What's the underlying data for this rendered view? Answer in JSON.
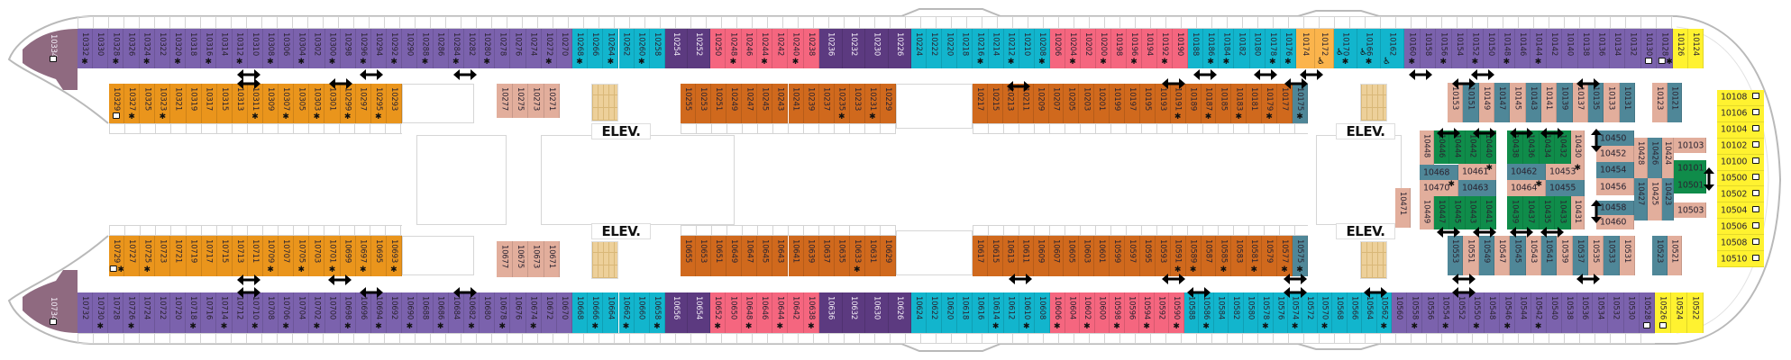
{
  "deck": {
    "elevator_label": "ELEV.",
    "bow_cabins": [
      {
        "n": "10334",
        "color": "#8f6a80",
        "icon": "sofa-bed"
      },
      {
        "n": "10734",
        "color": "#8f6a80",
        "icon": "sofa-bed"
      }
    ],
    "blocks": [
      {
        "color": "#7b62ad",
        "cabins": [
          "10332",
          "10330",
          "10328",
          "10326",
          "10324",
          "10322",
          "10320",
          "10318",
          "10316",
          "10314",
          "10312",
          "10310",
          "10308",
          "10306",
          "10304",
          "10302",
          "10300",
          "10298",
          "10296",
          "10294",
          "10292",
          "10290",
          "10288",
          "10286",
          "10284",
          "10282",
          "10280",
          "10278",
          "10276",
          "10274",
          "10272",
          "10270"
        ],
        "starred": [
          "10332",
          "10328",
          "10324",
          "10320",
          "10316",
          "10312",
          "10308",
          "10304",
          "10300",
          "10296",
          "10292",
          "10288",
          "10284",
          "10280",
          "10272"
        ]
      },
      {
        "color": "#12b5cd",
        "cabins": [
          "10268",
          "10266",
          "10264",
          "10262",
          "10260",
          "10258"
        ],
        "starred": [
          "10268",
          "10264",
          "10260"
        ]
      },
      {
        "color": "#5c3a80",
        "light": true,
        "cabins": [
          "10254",
          "10252"
        ],
        "starred": []
      },
      {
        "color": "#f5667f",
        "cabins": [
          "10250",
          "10248",
          "10246",
          "10244",
          "10242",
          "10240",
          "10238"
        ],
        "starred": [
          "10248",
          "10244",
          "10240"
        ]
      },
      {
        "color": "#5c3a80",
        "light": true,
        "cabins": [
          "10236",
          "10232",
          "10230",
          "10226"
        ],
        "starred": []
      },
      {
        "color": "#12b5cd",
        "cabins": [
          "10224",
          "10222",
          "10220",
          "10218",
          "10216",
          "10214",
          "10212",
          "10210",
          "10208"
        ],
        "starred": [
          "10216",
          "10212",
          "10208"
        ]
      },
      {
        "color": "#f5667f",
        "cabins": [
          "10206",
          "10204",
          "10202",
          "10200",
          "10198",
          "10196",
          "10194",
          "10192",
          "10190"
        ],
        "starred": [
          "10204",
          "10200",
          "10196",
          "10192"
        ]
      },
      {
        "color": "#12b5cd",
        "cabins": [
          "10188",
          "10186",
          "10184",
          "10182",
          "10180",
          "10178",
          "10176"
        ],
        "starred": [
          "10186",
          "10184",
          "10178",
          "10176"
        ]
      },
      {
        "color": "#fbb44c",
        "cabins": [
          "10174",
          "10172"
        ],
        "starred": [],
        "icons": {
          "10172": "wheelchair"
        }
      },
      {
        "color": "#12b5cd",
        "cabins": [
          "10170",
          "10166",
          "10162"
        ],
        "starred": [
          "10170",
          "10166"
        ],
        "icons": {
          "10170": "wheelchair",
          "10166": "wheelchair",
          "10162": "wheelchair"
        }
      },
      {
        "color": "#7b62ad",
        "cabins": [
          "10160",
          "10158",
          "10156",
          "10154",
          "10152",
          "10150",
          "10148",
          "10146",
          "10144",
          "10142",
          "10140",
          "10138",
          "10136",
          "10134",
          "10132",
          "10130",
          "10128"
        ],
        "starred": [
          "10160",
          "10156",
          "10152",
          "10148",
          "10144",
          "10128"
        ],
        "icons": {
          "10130": "sofa-bed",
          "10128": "sofa-bed"
        }
      },
      {
        "color": "#fff230",
        "cabins": [
          "10126",
          "10124"
        ],
        "starred": []
      },
      {
        "color": "#ea951c",
        "cabins": [
          "10329",
          "10327",
          "10325",
          "10323",
          "10321",
          "10319",
          "10317",
          "10315",
          "10313",
          "10311",
          "10309",
          "10307",
          "10305",
          "10303",
          "10301",
          "10299",
          "10297",
          "10295",
          "10293"
        ],
        "starred": [
          "10327",
          "10323",
          "10311",
          "10307",
          "10303",
          "10299",
          "10295"
        ],
        "icons": {
          "10329": "sofa-bed"
        }
      },
      {
        "color": "#e2ae9c",
        "cabins": [
          "10277",
          "10275",
          "10273",
          "10271"
        ],
        "starred": []
      },
      {
        "color": "#d0691d",
        "cabins": [
          "10255",
          "10253",
          "10251",
          "10249",
          "10247",
          "10245",
          "10243",
          "10241",
          "10239",
          "10237",
          "10235",
          "10233",
          "10231",
          "10229"
        ],
        "starred": [
          "10235",
          "10231"
        ]
      },
      {
        "color": "#d0691d",
        "cabins": [
          "10217",
          "10215",
          "10213",
          "10211",
          "10209",
          "10207",
          "10205",
          "10203",
          "10201",
          "10199",
          "10197",
          "10195",
          "10193",
          "10191",
          "10189",
          "10187",
          "10185",
          "10183",
          "10181",
          "10179",
          "10177"
        ],
        "starred": [
          "10191",
          "10187",
          "10183",
          "10179"
        ]
      },
      {
        "color": "#4f8798",
        "cabins": [
          "10175"
        ],
        "starred": [
          "10175"
        ]
      },
      {
        "pattern": [
          "#e2ae9c",
          "#4f8798"
        ],
        "cabins": [
          "10153",
          "10151",
          "10149",
          "10147",
          "10145",
          "10143",
          "10141",
          "10139",
          "10137",
          "10135",
          "10133",
          "10131"
        ],
        "starred": []
      },
      {
        "pattern": [
          "#e2ae9c",
          "#4f8798"
        ],
        "cabins": [
          "10123",
          "10121"
        ],
        "starred": []
      },
      {
        "color": "#ea951c",
        "cabins": [
          "10729",
          "10727",
          "10725",
          "10723",
          "10721",
          "10719",
          "10717",
          "10715",
          "10713",
          "10711",
          "10709",
          "10707",
          "10705",
          "10703",
          "10701",
          "10699",
          "10697",
          "10695",
          "10693"
        ],
        "starred": [
          "10729",
          "10725",
          "10709",
          "10705",
          "10701",
          "10697",
          "10693"
        ],
        "icons": {
          "10729": "sofa-bed"
        }
      },
      {
        "color": "#e2ae9c",
        "cabins": [
          "10677",
          "10675",
          "10673",
          "10671"
        ],
        "starred": []
      },
      {
        "color": "#d0691d",
        "cabins": [
          "10655",
          "10653",
          "10651",
          "10649",
          "10647",
          "10645",
          "10643",
          "10641",
          "10639",
          "10637",
          "10635",
          "10633",
          "10631",
          "10629"
        ],
        "starred": [
          "10633"
        ]
      },
      {
        "color": "#d0691d",
        "cabins": [
          "10617",
          "10615",
          "10613",
          "10611",
          "10609",
          "10607",
          "10605",
          "10603",
          "10601",
          "10599",
          "10597",
          "10595",
          "10593",
          "10591",
          "10589",
          "10587",
          "10585",
          "10583",
          "10581",
          "10579",
          "10577"
        ],
        "starred": [
          "10591",
          "10589",
          "10585",
          "10581",
          "10577"
        ]
      },
      {
        "color": "#4f8798",
        "cabins": [
          "10575"
        ],
        "starred": [
          "10575"
        ]
      },
      {
        "pattern": [
          "#4f8798",
          "#e2ae9c"
        ],
        "cabins": [
          "10553",
          "10551",
          "10549",
          "10547",
          "10545",
          "10543",
          "10541",
          "10539",
          "10537",
          "10535",
          "10533",
          "10531"
        ],
        "starred": []
      },
      {
        "pattern": [
          "#4f8798",
          "#e2ae9c"
        ],
        "cabins": [
          "10523",
          "10521"
        ],
        "starred": []
      },
      {
        "color": "#7b62ad",
        "cabins": [
          "10732",
          "10730",
          "10728",
          "10726",
          "10724",
          "10722",
          "10720",
          "10718",
          "10716",
          "10714",
          "10712",
          "10710",
          "10708",
          "10706",
          "10704",
          "10702",
          "10700",
          "10698",
          "10696",
          "10694",
          "10692",
          "10690",
          "10688",
          "10686",
          "10684",
          "10682",
          "10680",
          "10678",
          "10676",
          "10674",
          "10672",
          "10670"
        ],
        "starred": [
          "10730",
          "10726",
          "10718",
          "10714",
          "10710",
          "10706",
          "10702",
          "10698",
          "10694",
          "10690",
          "10686",
          "10682",
          "10678",
          "10674"
        ]
      },
      {
        "color": "#12b5cd",
        "cabins": [
          "10668",
          "10666",
          "10664",
          "10662",
          "10660",
          "10658"
        ],
        "starred": [
          "10666",
          "10662",
          "10658"
        ]
      },
      {
        "color": "#5c3a80",
        "light": true,
        "cabins": [
          "10656",
          "10654"
        ],
        "starred": []
      },
      {
        "color": "#f5667f",
        "cabins": [
          "10652",
          "10650",
          "10648",
          "10646",
          "10644",
          "10642",
          "10638"
        ],
        "starred": [
          "10652",
          "10648",
          "10644",
          "10638"
        ]
      },
      {
        "color": "#5c3a80",
        "light": true,
        "cabins": [
          "10636",
          "10632",
          "10630",
          "10626"
        ],
        "starred": []
      },
      {
        "color": "#12b5cd",
        "cabins": [
          "10624",
          "10622",
          "10620",
          "10618",
          "10616",
          "10614",
          "10612",
          "10610",
          "10608"
        ],
        "starred": [
          "10614",
          "10610"
        ]
      },
      {
        "color": "#f5667f",
        "cabins": [
          "10606",
          "10604",
          "10602",
          "10600",
          "10598",
          "10596",
          "10594",
          "10592",
          "10590"
        ],
        "starred": [
          "10606",
          "10602",
          "10598",
          "10594",
          "10590"
        ]
      },
      {
        "color": "#12b5cd",
        "cabins": [
          "10588",
          "10586",
          "10584",
          "10582",
          "10580",
          "10578",
          "10576",
          "10574",
          "10572",
          "10570",
          "10568",
          "10566",
          "10564",
          "10562"
        ],
        "starred": [
          "10586",
          "10578",
          "10574",
          "10570",
          "10562"
        ]
      },
      {
        "color": "#7b62ad",
        "cabins": [
          "10560",
          "10558",
          "10556",
          "10554",
          "10552",
          "10550",
          "10548",
          "10546",
          "10544",
          "10542",
          "10540",
          "10538",
          "10536",
          "10534",
          "10532",
          "10530",
          "10528"
        ],
        "starred": [
          "10558",
          "10554",
          "10550",
          "10546",
          "10542"
        ],
        "icons": {
          "10528": "sofa-bed"
        }
      },
      {
        "color": "#fff230",
        "cabins": [
          "10526",
          "10524",
          "10522"
        ],
        "starred": [],
        "icons": {
          "10526": "sofa-bed"
        }
      }
    ],
    "cluster": [
      {
        "n": "10448",
        "color": "#e2ae9c"
      },
      {
        "n": "10446",
        "color": "#0f8c4a"
      },
      {
        "n": "10444",
        "color": "#0f8c4a"
      },
      {
        "n": "10442",
        "color": "#0f8c4a"
      },
      {
        "n": "10440",
        "color": "#0f8c4a"
      },
      {
        "n": "10468",
        "color": "#4f8798"
      },
      {
        "n": "10461",
        "color": "#e2ae9c",
        "star": true
      },
      {
        "n": "10470",
        "color": "#e2ae9c",
        "star": true
      },
      {
        "n": "10463",
        "color": "#4f8798"
      },
      {
        "n": "10449",
        "color": "#e2ae9c"
      },
      {
        "n": "10447",
        "color": "#0f8c4a"
      },
      {
        "n": "10445",
        "color": "#0f8c4a"
      },
      {
        "n": "10443",
        "color": "#0f8c4a"
      },
      {
        "n": "10441",
        "color": "#0f8c4a"
      },
      {
        "n": "10438",
        "color": "#0f8c4a"
      },
      {
        "n": "10436",
        "color": "#0f8c4a"
      },
      {
        "n": "10434",
        "color": "#0f8c4a"
      },
      {
        "n": "10432",
        "color": "#0f8c4a"
      },
      {
        "n": "10430",
        "color": "#e2ae9c"
      },
      {
        "n": "10462",
        "color": "#4f8798"
      },
      {
        "n": "10453",
        "color": "#e2ae9c",
        "star": true
      },
      {
        "n": "10464",
        "color": "#e2ae9c",
        "star": true
      },
      {
        "n": "10455",
        "color": "#4f8798"
      },
      {
        "n": "10439",
        "color": "#0f8c4a"
      },
      {
        "n": "10437",
        "color": "#0f8c4a"
      },
      {
        "n": "10435",
        "color": "#0f8c4a"
      },
      {
        "n": "10433",
        "color": "#0f8c4a"
      },
      {
        "n": "10431",
        "color": "#e2ae9c"
      },
      {
        "n": "10450",
        "color": "#4f8798"
      },
      {
        "n": "10452",
        "color": "#e2ae9c"
      },
      {
        "n": "10454",
        "color": "#4f8798"
      },
      {
        "n": "10456",
        "color": "#e2ae9c"
      },
      {
        "n": "10458",
        "color": "#4f8798"
      },
      {
        "n": "10460",
        "color": "#e2ae9c"
      },
      {
        "n": "10428",
        "color": "#e2ae9c"
      },
      {
        "n": "10427",
        "color": "#4f8798"
      },
      {
        "n": "10426",
        "color": "#4f8798"
      },
      {
        "n": "10425",
        "color": "#e2ae9c"
      },
      {
        "n": "10424",
        "color": "#e2ae9c"
      },
      {
        "n": "10423",
        "color": "#4f8798"
      },
      {
        "n": "10103",
        "color": "#e2ae9c"
      },
      {
        "n": "10101",
        "color": "#0f8c4a"
      },
      {
        "n": "10501",
        "color": "#0f8c4a"
      },
      {
        "n": "10503",
        "color": "#e2ae9c"
      },
      {
        "n": "10471",
        "color": "#e2ae9c"
      }
    ],
    "suites": {
      "color": "#fff230",
      "icon": "sofa-bed",
      "cabins": [
        "10108",
        "10106",
        "10104",
        "10102",
        "10100",
        "10500",
        "10502",
        "10504",
        "10506",
        "10508",
        "10510"
      ]
    }
  }
}
